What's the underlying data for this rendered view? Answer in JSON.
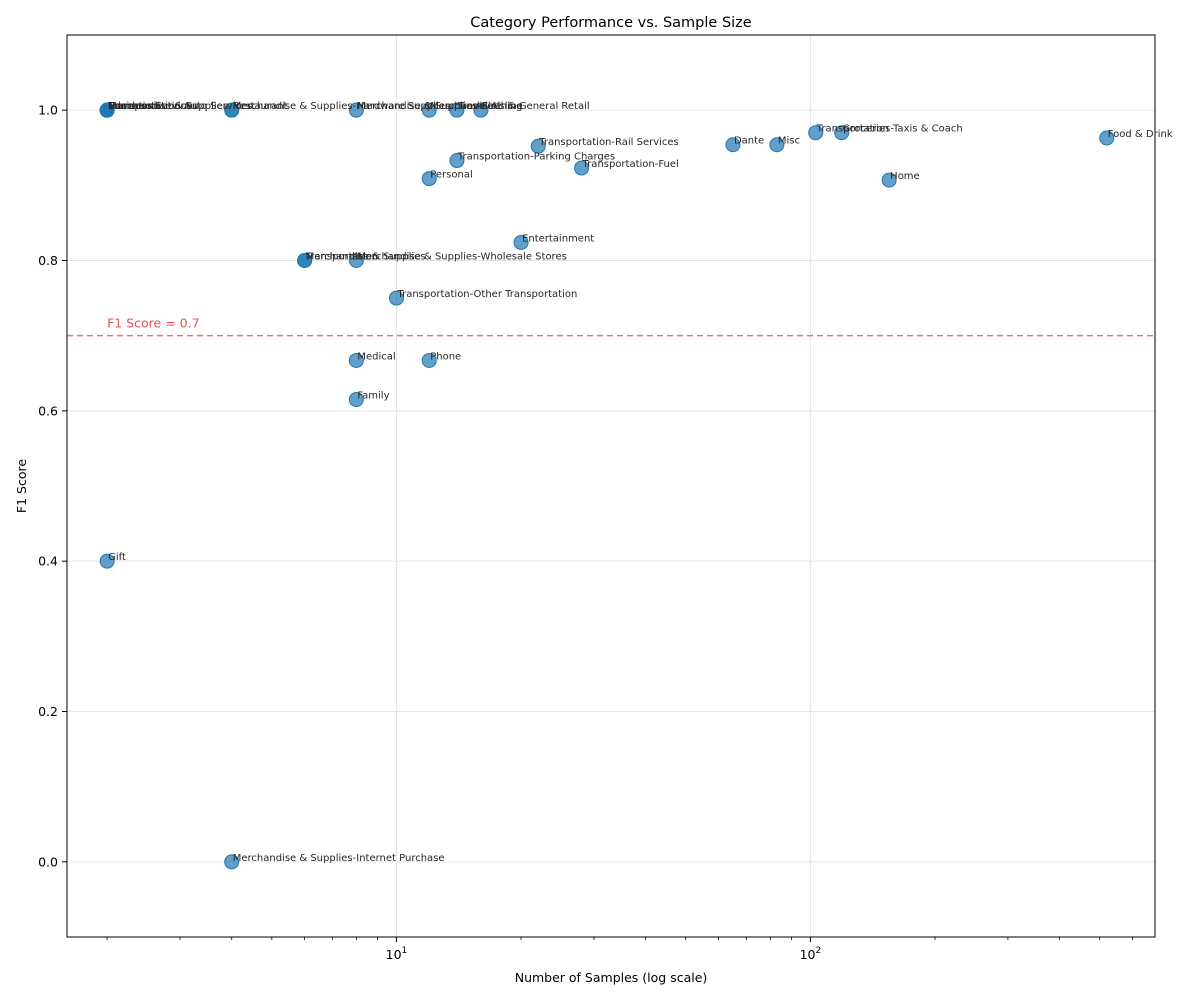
{
  "chart_data": {
    "type": "scatter",
    "title": "Category Performance vs. Sample Size",
    "xlabel": "Number of Samples (log scale)",
    "ylabel": "F1 Score",
    "xscale": "log",
    "xlim": [
      1.6,
      680
    ],
    "ylim": [
      -0.1,
      1.1
    ],
    "grid": true,
    "x_major_ticks": [
      {
        "value": 10,
        "base": "10",
        "exp": "1"
      },
      {
        "value": 100,
        "base": "10",
        "exp": "2"
      }
    ],
    "x_minor_ticks": [
      2,
      3,
      4,
      5,
      6,
      7,
      8,
      9,
      20,
      30,
      40,
      50,
      60,
      70,
      80,
      90,
      200,
      300,
      400,
      500,
      600
    ],
    "y_ticks": [
      {
        "value": 0.0,
        "label": "0.0"
      },
      {
        "value": 0.2,
        "label": "0.2"
      },
      {
        "value": 0.4,
        "label": "0.4"
      },
      {
        "value": 0.6,
        "label": "0.6"
      },
      {
        "value": 0.8,
        "label": "0.8"
      },
      {
        "value": 1.0,
        "label": "1.0"
      }
    ],
    "reference_line": {
      "y": 0.7,
      "label": "F1 Score = 0.7",
      "color": "#e8534f"
    },
    "marker_color": "#1f77b4",
    "points": [
      {
        "x": 2,
        "y": 1.0,
        "label": "Merchandise & Supplies"
      },
      {
        "x": 2,
        "y": 1.0,
        "label": "Transportation-Auto Services"
      },
      {
        "x": 2,
        "y": 1.0,
        "label": "Business Services"
      },
      {
        "x": 2,
        "y": 1.0,
        "label": "Communications"
      },
      {
        "x": 2,
        "y": 1.0,
        "label": "Education"
      },
      {
        "x": 2,
        "y": 0.4,
        "label": "Gift"
      },
      {
        "x": 4,
        "y": 1.0,
        "label": "Merchandise & Supplies-Hardware Supplies"
      },
      {
        "x": 4,
        "y": 1.0,
        "label": "Restaurant"
      },
      {
        "x": 4,
        "y": 0.0,
        "label": "Merchandise & Supplies-Internet Purchase"
      },
      {
        "x": 6,
        "y": 0.8,
        "label": "Merchandise & Supplies"
      },
      {
        "x": 6,
        "y": 0.8,
        "label": "Transportation"
      },
      {
        "x": 8,
        "y": 1.0,
        "label": "Merchandise & Supplies-Clothing"
      },
      {
        "x": 8,
        "y": 0.8,
        "label": "Merchandise & Supplies-Wholesale Stores"
      },
      {
        "x": 8,
        "y": 0.667,
        "label": "Medical"
      },
      {
        "x": 8,
        "y": 0.615,
        "label": "Family"
      },
      {
        "x": 10,
        "y": 0.75,
        "label": "Transportation-Other Transportation"
      },
      {
        "x": 12,
        "y": 1.0,
        "label": "Merchandise"
      },
      {
        "x": 12,
        "y": 0.909,
        "label": "Personal"
      },
      {
        "x": 12,
        "y": 0.667,
        "label": "Phone"
      },
      {
        "x": 14,
        "y": 1.0,
        "label": "Travel-Airline"
      },
      {
        "x": 14,
        "y": 0.933,
        "label": "Transportation-Parking Charges"
      },
      {
        "x": 16,
        "y": 1.0,
        "label": "Fees & General Retail"
      },
      {
        "x": 20,
        "y": 0.824,
        "label": "Entertainment"
      },
      {
        "x": 22,
        "y": 0.952,
        "label": "Transportation-Rail Services"
      },
      {
        "x": 28,
        "y": 0.923,
        "label": "Transportation-Fuel"
      },
      {
        "x": 65,
        "y": 0.954,
        "label": "Dante"
      },
      {
        "x": 83,
        "y": 0.954,
        "label": "Misc"
      },
      {
        "x": 103,
        "y": 0.97,
        "label": "Transportation"
      },
      {
        "x": 119,
        "y": 0.97,
        "label": "Groceries-Taxis & Coach"
      },
      {
        "x": 155,
        "y": 0.907,
        "label": "Home"
      },
      {
        "x": 520,
        "y": 0.963,
        "label": "Food & Drink"
      }
    ]
  }
}
